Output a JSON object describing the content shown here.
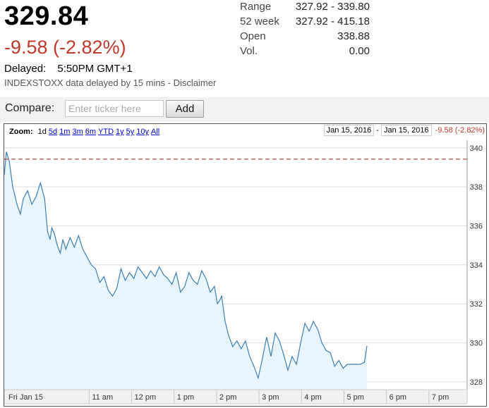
{
  "quote": {
    "price": "329.84",
    "change": "-9.58 (-2.82%)",
    "delayed_label": "Delayed:",
    "delayed_time": "5:50PM GMT+1",
    "note": "INDEXSTOXX data delayed by 15 mins - Disclaimer"
  },
  "stats": {
    "range_label": "Range",
    "range_value": "327.92 - 339.80",
    "week52_label": "52 week",
    "week52_value": "327.92 - 415.18",
    "open_label": "Open",
    "open_value": "338.88",
    "vol_label": "Vol.",
    "vol_value": "0.00"
  },
  "compare": {
    "label": "Compare:",
    "placeholder": "Enter ticker here",
    "add_label": "Add"
  },
  "zoom": {
    "label": "Zoom:",
    "options": [
      "1d",
      "5d",
      "1m",
      "3m",
      "6m",
      "YTD",
      "1y",
      "5y",
      "10y",
      "All"
    ],
    "active": "1d"
  },
  "date_range": {
    "start": "Jan 15, 2016",
    "separator": "-",
    "end": "Jan 15, 2016",
    "change": "-9.58 (-2.82%)"
  },
  "colors": {
    "line": "#3a7fb4",
    "fill": "#e9f5fc",
    "prev_close": "#b22222",
    "negative": "#c0392b"
  },
  "chart_data": {
    "type": "area",
    "x_ticks": [
      "Fri Jan 15",
      "11 am",
      "12 pm",
      "1 pm",
      "2 pm",
      "3 pm",
      "4 pm",
      "5 pm",
      "6 pm",
      "7 pm"
    ],
    "x_tick_hours": [
      9,
      11,
      12,
      13,
      14,
      15,
      16,
      17,
      18,
      19
    ],
    "y_ticks": [
      "340",
      "338",
      "336",
      "334",
      "332",
      "330",
      "328"
    ],
    "ylim": [
      327.6,
      340.1
    ],
    "xlim": [
      9,
      19.9
    ],
    "reference_line": 339.42,
    "grid": true,
    "series": [
      {
        "x": [
          9.0,
          9.05,
          9.12,
          9.2,
          9.3,
          9.38,
          9.45,
          9.55,
          9.65,
          9.75,
          9.85,
          9.95,
          10.02,
          10.08,
          10.12,
          10.18,
          10.25,
          10.32,
          10.38,
          10.45,
          10.55,
          10.65,
          10.75,
          10.85,
          10.95,
          11.05,
          11.15,
          11.25,
          11.35,
          11.45,
          11.55,
          11.65,
          11.75,
          11.85,
          11.95,
          12.05,
          12.15,
          12.25,
          12.35,
          12.45,
          12.55,
          12.65,
          12.75,
          12.85,
          12.95,
          13.05,
          13.15,
          13.25,
          13.35,
          13.45,
          13.55,
          13.65,
          13.75,
          13.85,
          13.95,
          14.02,
          14.08,
          14.12,
          14.2,
          14.28,
          14.38,
          14.48,
          14.58,
          14.68,
          14.78,
          14.88,
          14.98,
          15.08,
          15.18,
          15.28,
          15.38,
          15.48,
          15.58,
          15.68,
          15.78,
          15.88,
          15.98,
          16.08,
          16.18,
          16.28,
          16.38,
          16.48,
          16.58,
          16.68,
          16.78,
          16.88,
          16.98,
          17.08,
          17.18,
          17.28,
          17.38,
          17.48,
          17.54
        ],
        "y": [
          338.6,
          339.8,
          339.3,
          338.0,
          337.1,
          336.6,
          337.4,
          337.8,
          337.1,
          337.5,
          338.2,
          337.4,
          335.7,
          335.3,
          335.9,
          335.6,
          335.0,
          334.6,
          335.3,
          334.8,
          335.4,
          334.9,
          335.5,
          334.8,
          334.4,
          334.0,
          333.8,
          333.1,
          333.4,
          332.7,
          332.4,
          332.8,
          333.8,
          333.2,
          333.6,
          333.3,
          333.9,
          333.6,
          333.3,
          333.7,
          333.4,
          333.9,
          333.5,
          333.3,
          333.0,
          333.6,
          332.6,
          332.9,
          333.6,
          333.2,
          333.0,
          333.7,
          333.3,
          332.6,
          332.9,
          332.0,
          332.2,
          332.4,
          331.1,
          330.4,
          329.8,
          330.1,
          329.7,
          330.1,
          329.3,
          328.8,
          328.2,
          329.2,
          330.3,
          329.3,
          330.5,
          330.1,
          329.4,
          328.6,
          329.3,
          328.9,
          330.0,
          331.0,
          330.6,
          331.1,
          330.7,
          330.0,
          329.6,
          329.5,
          328.8,
          329.1,
          328.7,
          328.9,
          328.9,
          328.9,
          328.9,
          329.0,
          329.84
        ]
      }
    ]
  }
}
